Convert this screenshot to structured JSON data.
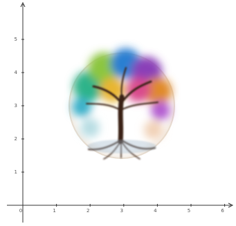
{
  "x_axis": {
    "ticks": [
      0,
      1,
      2,
      3,
      4,
      5,
      6
    ]
  },
  "y_axis": {
    "ticks": [
      1,
      2,
      3,
      4,
      5
    ]
  }
}
